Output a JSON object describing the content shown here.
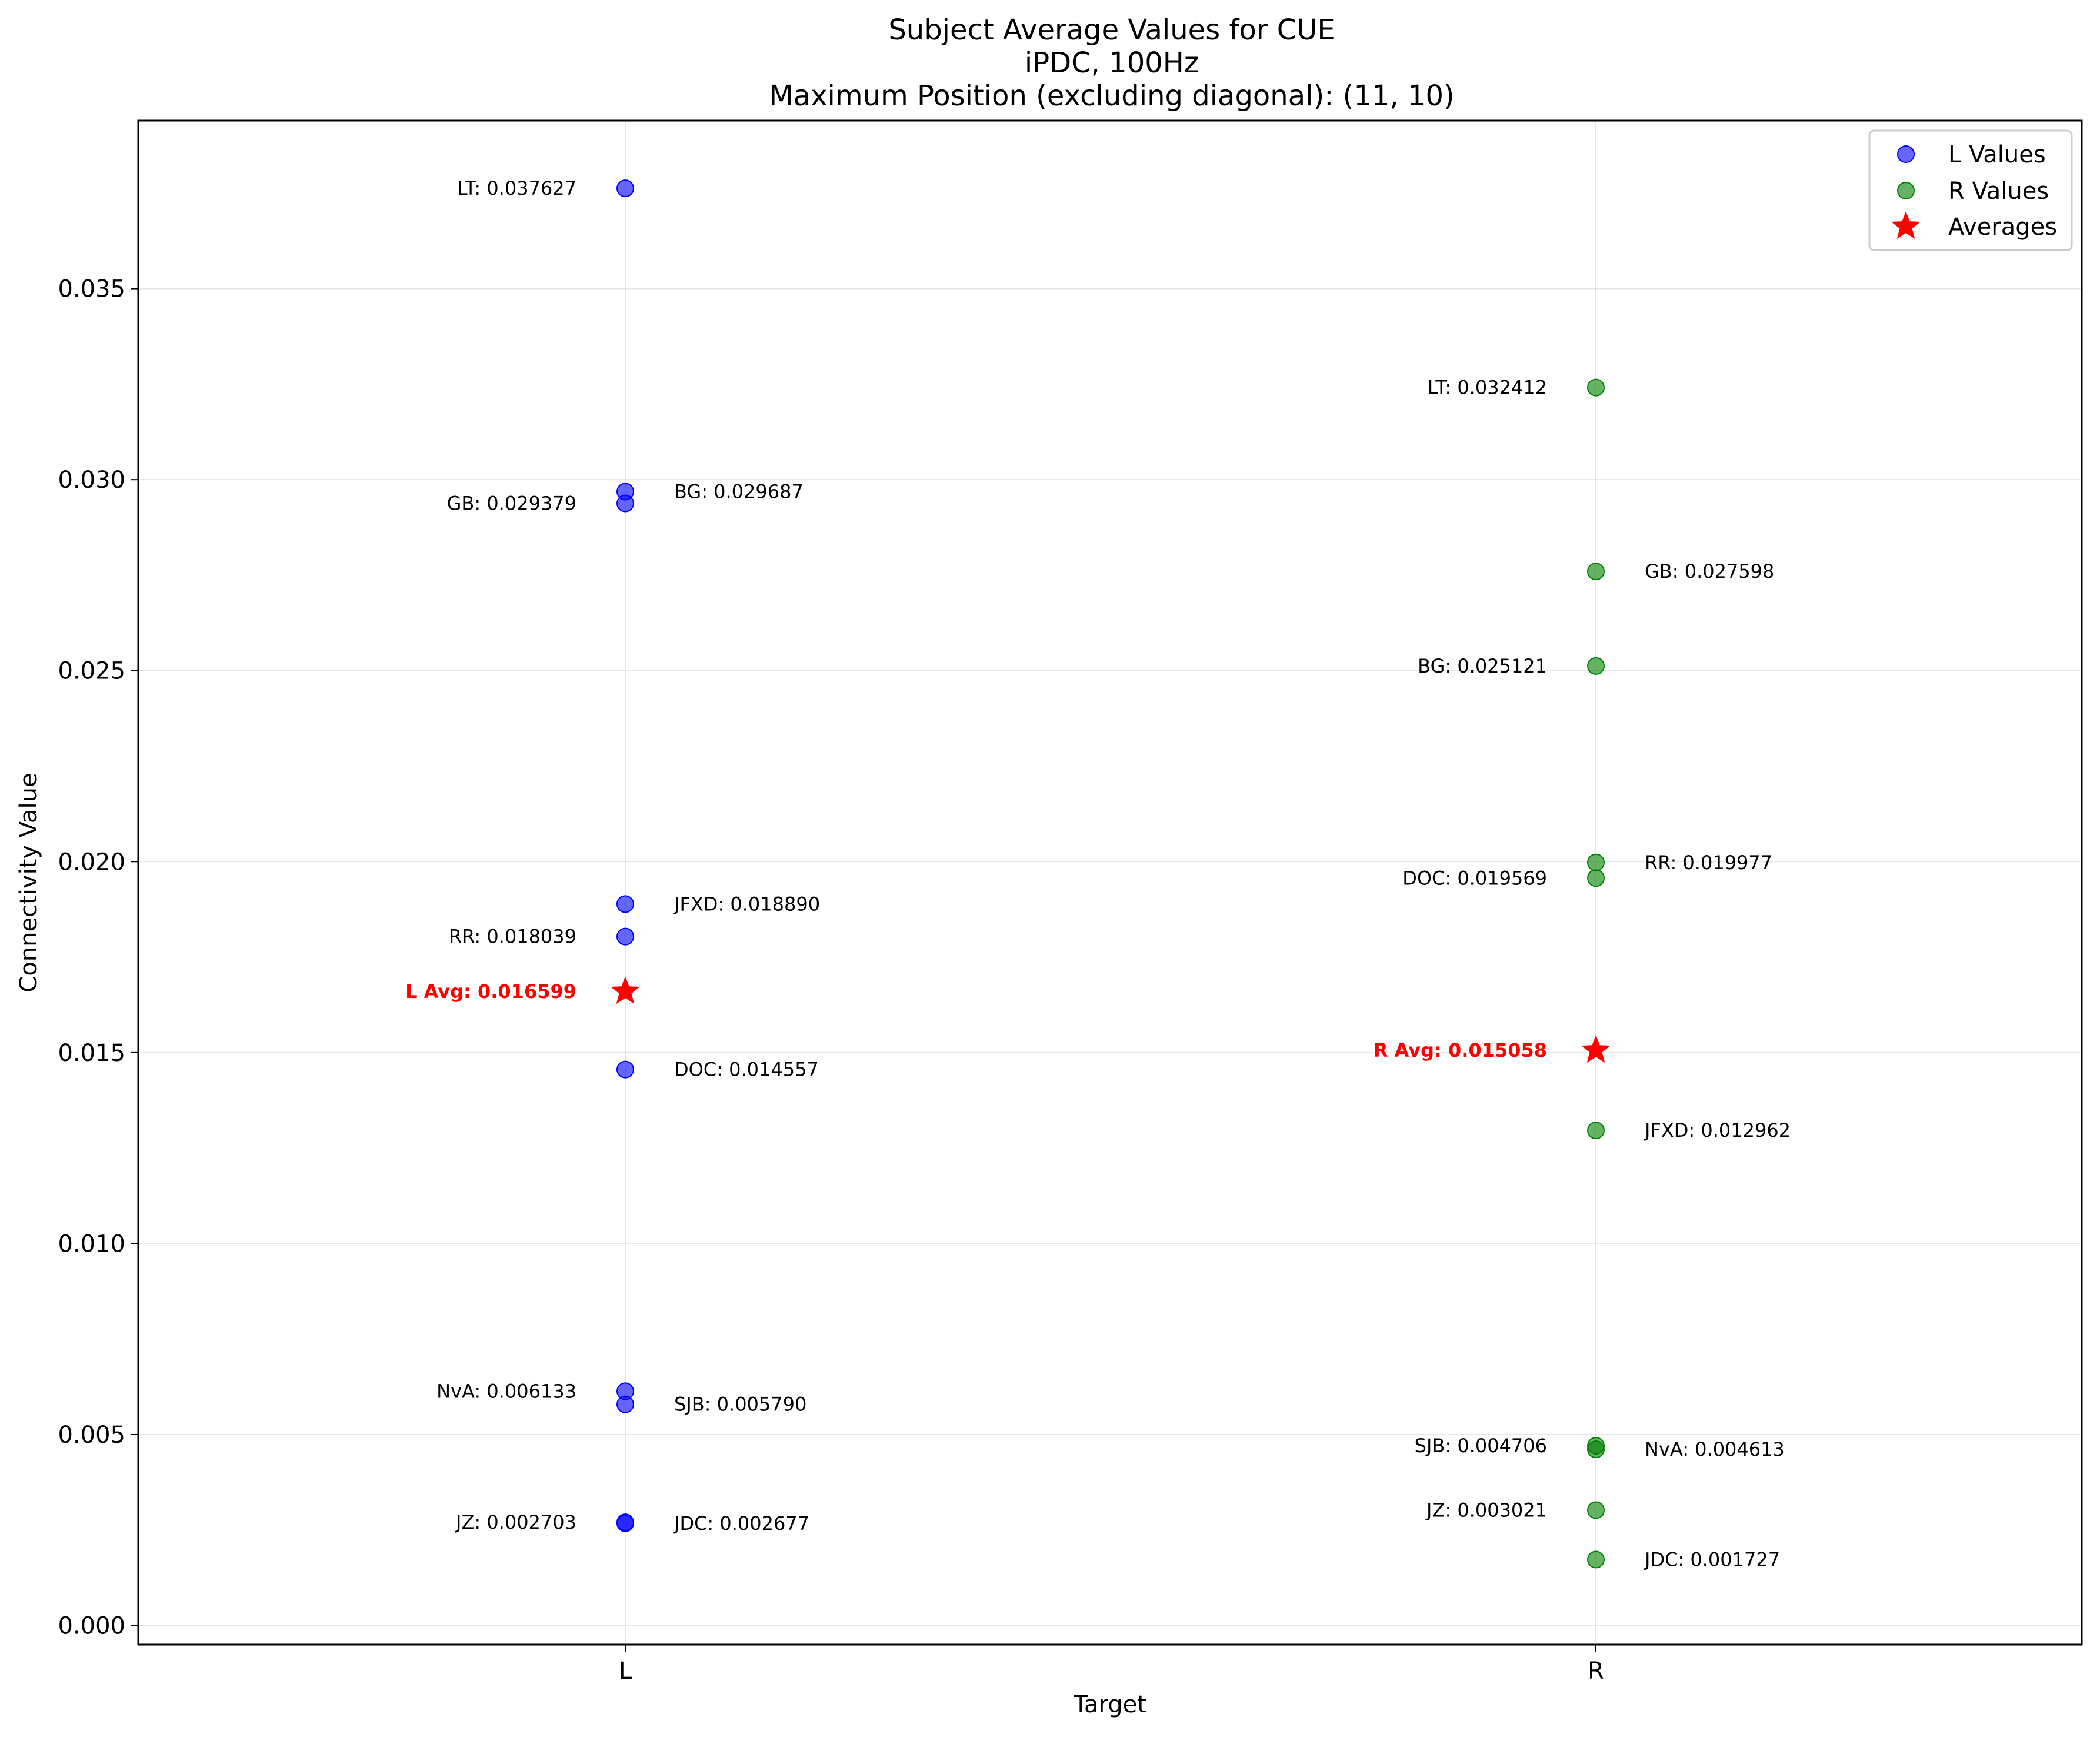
{
  "chart_data": {
    "type": "scatter",
    "title_lines": [
      "Subject Average Values for CUE",
      "iPDC, 100Hz",
      "Maximum Position (excluding diagonal): (11, 10)"
    ],
    "xlabel": "Target",
    "ylabel": "Connectivity Value",
    "categories": [
      "L",
      "R"
    ],
    "ylim": [
      -0.0005,
      0.0394
    ],
    "yticks": [
      0.0,
      0.005,
      0.01,
      0.015,
      0.02,
      0.025,
      0.03,
      0.035
    ],
    "ytick_labels": [
      "0.000",
      "0.005",
      "0.010",
      "0.015",
      "0.020",
      "0.025",
      "0.030",
      "0.035"
    ],
    "grid": true,
    "legend_position": "top-right",
    "series": [
      {
        "name": "L Values",
        "category": "L",
        "color": "#0000ff",
        "points": [
          {
            "subject": "LT",
            "value": 0.037627,
            "label": "LT: 0.037627",
            "side": "left"
          },
          {
            "subject": "BG",
            "value": 0.029687,
            "label": "BG: 0.029687",
            "side": "right"
          },
          {
            "subject": "GB",
            "value": 0.029379,
            "label": "GB: 0.029379",
            "side": "left"
          },
          {
            "subject": "JFXD",
            "value": 0.01889,
            "label": "JFXD: 0.018890",
            "side": "right"
          },
          {
            "subject": "RR",
            "value": 0.018039,
            "label": "RR: 0.018039",
            "side": "left"
          },
          {
            "subject": "DOC",
            "value": 0.014557,
            "label": "DOC: 0.014557",
            "side": "right"
          },
          {
            "subject": "NvA",
            "value": 0.006133,
            "label": "NvA: 0.006133",
            "side": "left"
          },
          {
            "subject": "SJB",
            "value": 0.00579,
            "label": "SJB: 0.005790",
            "side": "right"
          },
          {
            "subject": "JZ",
            "value": 0.002703,
            "label": "JZ: 0.002703",
            "side": "left"
          },
          {
            "subject": "JDC",
            "value": 0.002677,
            "label": "JDC: 0.002677",
            "side": "right"
          }
        ]
      },
      {
        "name": "R Values",
        "category": "R",
        "color": "#008000",
        "points": [
          {
            "subject": "LT",
            "value": 0.032412,
            "label": "LT: 0.032412",
            "side": "left"
          },
          {
            "subject": "GB",
            "value": 0.027598,
            "label": "GB: 0.027598",
            "side": "right"
          },
          {
            "subject": "BG",
            "value": 0.025121,
            "label": "BG: 0.025121",
            "side": "left"
          },
          {
            "subject": "RR",
            "value": 0.019977,
            "label": "RR: 0.019977",
            "side": "right"
          },
          {
            "subject": "DOC",
            "value": 0.019569,
            "label": "DOC: 0.019569",
            "side": "left"
          },
          {
            "subject": "JFXD",
            "value": 0.012962,
            "label": "JFXD: 0.012962",
            "side": "right"
          },
          {
            "subject": "SJB",
            "value": 0.004706,
            "label": "SJB: 0.004706",
            "side": "left"
          },
          {
            "subject": "NvA",
            "value": 0.004613,
            "label": "NvA: 0.004613",
            "side": "right"
          },
          {
            "subject": "JZ",
            "value": 0.003021,
            "label": "JZ: 0.003021",
            "side": "left"
          },
          {
            "subject": "JDC",
            "value": 0.001727,
            "label": "JDC: 0.001727",
            "side": "right"
          }
        ]
      }
    ],
    "averages": {
      "name": "Averages",
      "color": "#ff0000",
      "points": [
        {
          "category": "L",
          "value": 0.016599,
          "label": "L Avg: 0.016599"
        },
        {
          "category": "R",
          "value": 0.015058,
          "label": "R Avg: 0.015058"
        }
      ]
    }
  }
}
